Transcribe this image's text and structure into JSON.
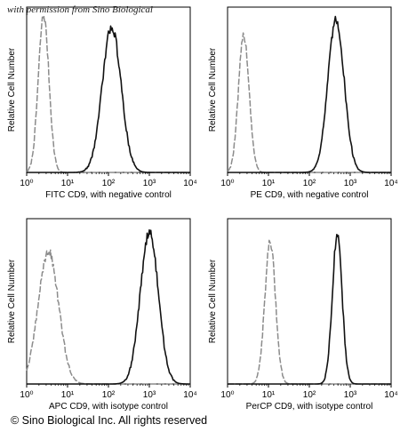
{
  "watermark": "with permission from Sino Biological",
  "copyright": "© Sino Biological Inc. All rights reserved",
  "chart_data": [
    {
      "type": "line",
      "title": "",
      "xlabel": "FITC  CD9,  with negative control",
      "ylabel": "Relative Cell Number",
      "xscale": "log",
      "xlim": [
        1,
        10000
      ],
      "x_ticks": [
        "10⁰",
        "10¹",
        "10²",
        "10³",
        "10⁴"
      ],
      "grid": false,
      "legend": "none",
      "series": [
        {
          "color": "#8c8c8c",
          "dashed": true,
          "peak_x": 2.6,
          "sigma_decades": 0.13,
          "peak": 0.95
        },
        {
          "color": "#111111",
          "dashed": false,
          "peak_x": 120,
          "sigma_decades": 0.23,
          "peak": 0.88
        }
      ]
    },
    {
      "type": "line",
      "title": "",
      "xlabel": "PE  CD9,  with negative control",
      "ylabel": "Relative Cell Number",
      "xscale": "log",
      "xlim": [
        1,
        10000
      ],
      "x_ticks": [
        "10⁰",
        "10¹",
        "10²",
        "10³",
        "10⁴"
      ],
      "grid": false,
      "legend": "none",
      "series": [
        {
          "color": "#8c8c8c",
          "dashed": true,
          "peak_x": 2.5,
          "sigma_decades": 0.13,
          "peak": 0.83
        },
        {
          "color": "#111111",
          "dashed": false,
          "peak_x": 450,
          "sigma_decades": 0.2,
          "peak": 0.92
        }
      ]
    },
    {
      "type": "line",
      "title": "",
      "xlabel": "APC CD9, with isotype control",
      "ylabel": "Relative Cell Number",
      "xscale": "log",
      "xlim": [
        1,
        10000
      ],
      "x_ticks": [
        "10⁰",
        "10¹",
        "10²",
        "10³",
        "10⁴"
      ],
      "grid": false,
      "legend": "none",
      "series": [
        {
          "color": "#8c8c8c",
          "dashed": true,
          "peak_x": 3.4,
          "sigma_decades": 0.25,
          "peak": 0.8
        },
        {
          "color": "#111111",
          "dashed": false,
          "peak_x": 1000,
          "sigma_decades": 0.22,
          "peak": 0.92
        }
      ]
    },
    {
      "type": "line",
      "title": "",
      "xlabel": "PerCP CD9, with isotype control",
      "ylabel": "Relative Cell Number",
      "xscale": "log",
      "xlim": [
        1,
        10000
      ],
      "x_ticks": [
        "10⁰",
        "10¹",
        "10²",
        "10³",
        "10⁴"
      ],
      "grid": false,
      "legend": "none",
      "series": [
        {
          "color": "#8c8c8c",
          "dashed": true,
          "peak_x": 11,
          "sigma_decades": 0.13,
          "peak": 0.86
        },
        {
          "color": "#111111",
          "dashed": false,
          "peak_x": 480,
          "sigma_decades": 0.12,
          "peak": 0.9
        }
      ]
    }
  ]
}
